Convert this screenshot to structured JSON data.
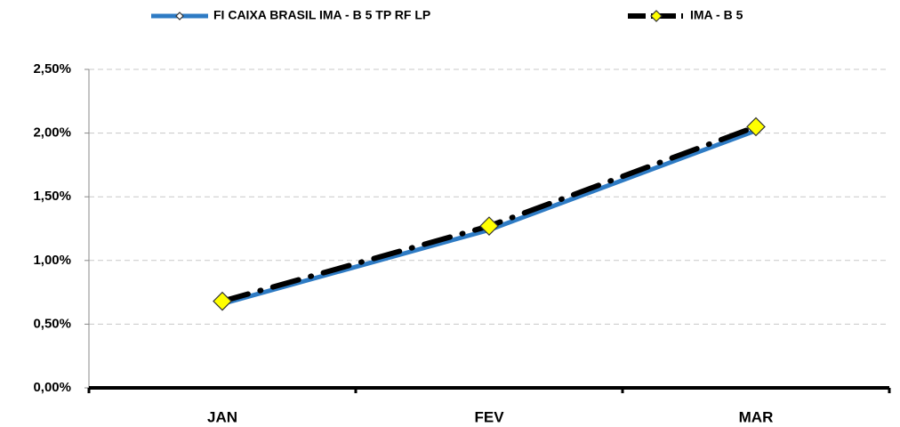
{
  "chart_data": {
    "type": "line",
    "categories": [
      "JAN",
      "FEV",
      "MAR"
    ],
    "series": [
      {
        "name": "FI CAIXA BRASIL IMA - B 5 TP RF LP",
        "color": "#2e7bc4",
        "values": [
          0.66,
          1.24,
          2.02
        ]
      },
      {
        "name": "IMA - B 5",
        "color": "#000000",
        "marker_color": "#ffff00",
        "values": [
          0.68,
          1.27,
          2.05
        ]
      }
    ],
    "ylim": [
      0,
      2.5
    ],
    "yticks": [
      {
        "value": 0,
        "label": "0,00%"
      },
      {
        "value": 0.5,
        "label": "0,50%"
      },
      {
        "value": 1,
        "label": "1,00%"
      },
      {
        "value": 1.5,
        "label": "1,50%"
      },
      {
        "value": 2,
        "label": "2,00%"
      },
      {
        "value": 2.5,
        "label": "2,50%"
      }
    ],
    "grid": true,
    "legend": "top"
  }
}
